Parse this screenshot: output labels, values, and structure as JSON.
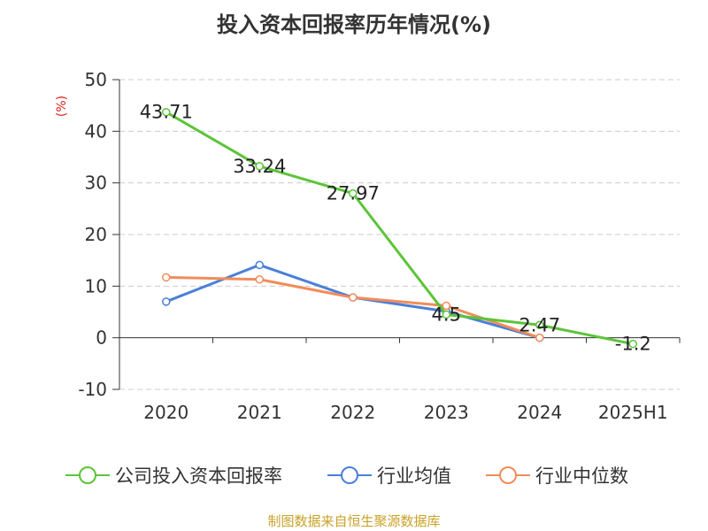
{
  "chart_data": {
    "type": "line",
    "title": "投入资本回报率历年情况(%)",
    "ylabel": "(%)",
    "categories": [
      "2020",
      "2021",
      "2022",
      "2023",
      "2024",
      "2025H1"
    ],
    "yticks": [
      50,
      40,
      30,
      20,
      10,
      0,
      -10
    ],
    "ylim": [
      -10,
      50
    ],
    "grid": true,
    "legend_position": "bottom",
    "series": [
      {
        "name": "公司投入资本回报率",
        "color": "#5cc43a",
        "values": [
          43.71,
          33.24,
          27.97,
          4.5,
          2.47,
          -1.2
        ],
        "data_labels": [
          "43.71",
          "33.24",
          "27.97",
          "4.5",
          "2.47",
          "-1.2"
        ]
      },
      {
        "name": "行业均值",
        "color": "#4a7fd9",
        "values": [
          7.0,
          14.1,
          7.8,
          5.1,
          0.0,
          null
        ]
      },
      {
        "name": "行业中位数",
        "color": "#f28c5a",
        "values": [
          11.7,
          11.3,
          7.8,
          6.2,
          0.0,
          null
        ]
      }
    ]
  },
  "source": "制图数据来自恒生聚源数据库"
}
